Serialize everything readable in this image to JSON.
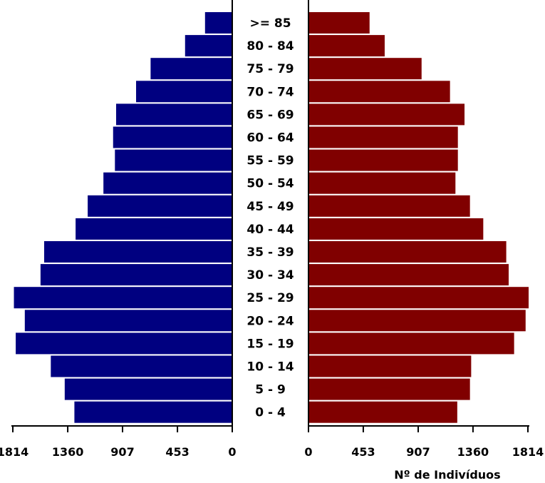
{
  "chart_data": {
    "type": "bar",
    "orientation": "horizontal-pyramid",
    "categories": [
      ">= 85",
      "80 - 84",
      "75 - 79",
      "70 - 74",
      "65 - 69",
      "60 - 64",
      "55 - 59",
      "50 - 54",
      "45 - 49",
      "40 - 44",
      "35 - 39",
      "30 - 34",
      "25 - 29",
      "20 - 24",
      "15 - 19",
      "10 - 14",
      "5 - 9",
      "0 - 4"
    ],
    "series": [
      {
        "side": "left",
        "color": "#000080",
        "values": [
          225,
          390,
          675,
          795,
          960,
          985,
          970,
          1065,
          1195,
          1295,
          1555,
          1585,
          1805,
          1715,
          1790,
          1500,
          1385,
          1305
        ]
      },
      {
        "side": "right",
        "color": "#800000",
        "values": [
          505,
          630,
          935,
          1170,
          1290,
          1235,
          1235,
          1215,
          1335,
          1445,
          1635,
          1655,
          1820,
          1795,
          1700,
          1345,
          1335,
          1230
        ]
      }
    ],
    "xlim": [
      0,
      1814
    ],
    "left_ticks": [
      "1814",
      "1360",
      "907",
      "453",
      "0"
    ],
    "right_ticks": [
      "0",
      "453",
      "907",
      "1360",
      "1814"
    ],
    "tick_values": [
      1814,
      1360,
      907,
      453,
      0
    ],
    "xlabel": "Nº de Indivíduos"
  }
}
